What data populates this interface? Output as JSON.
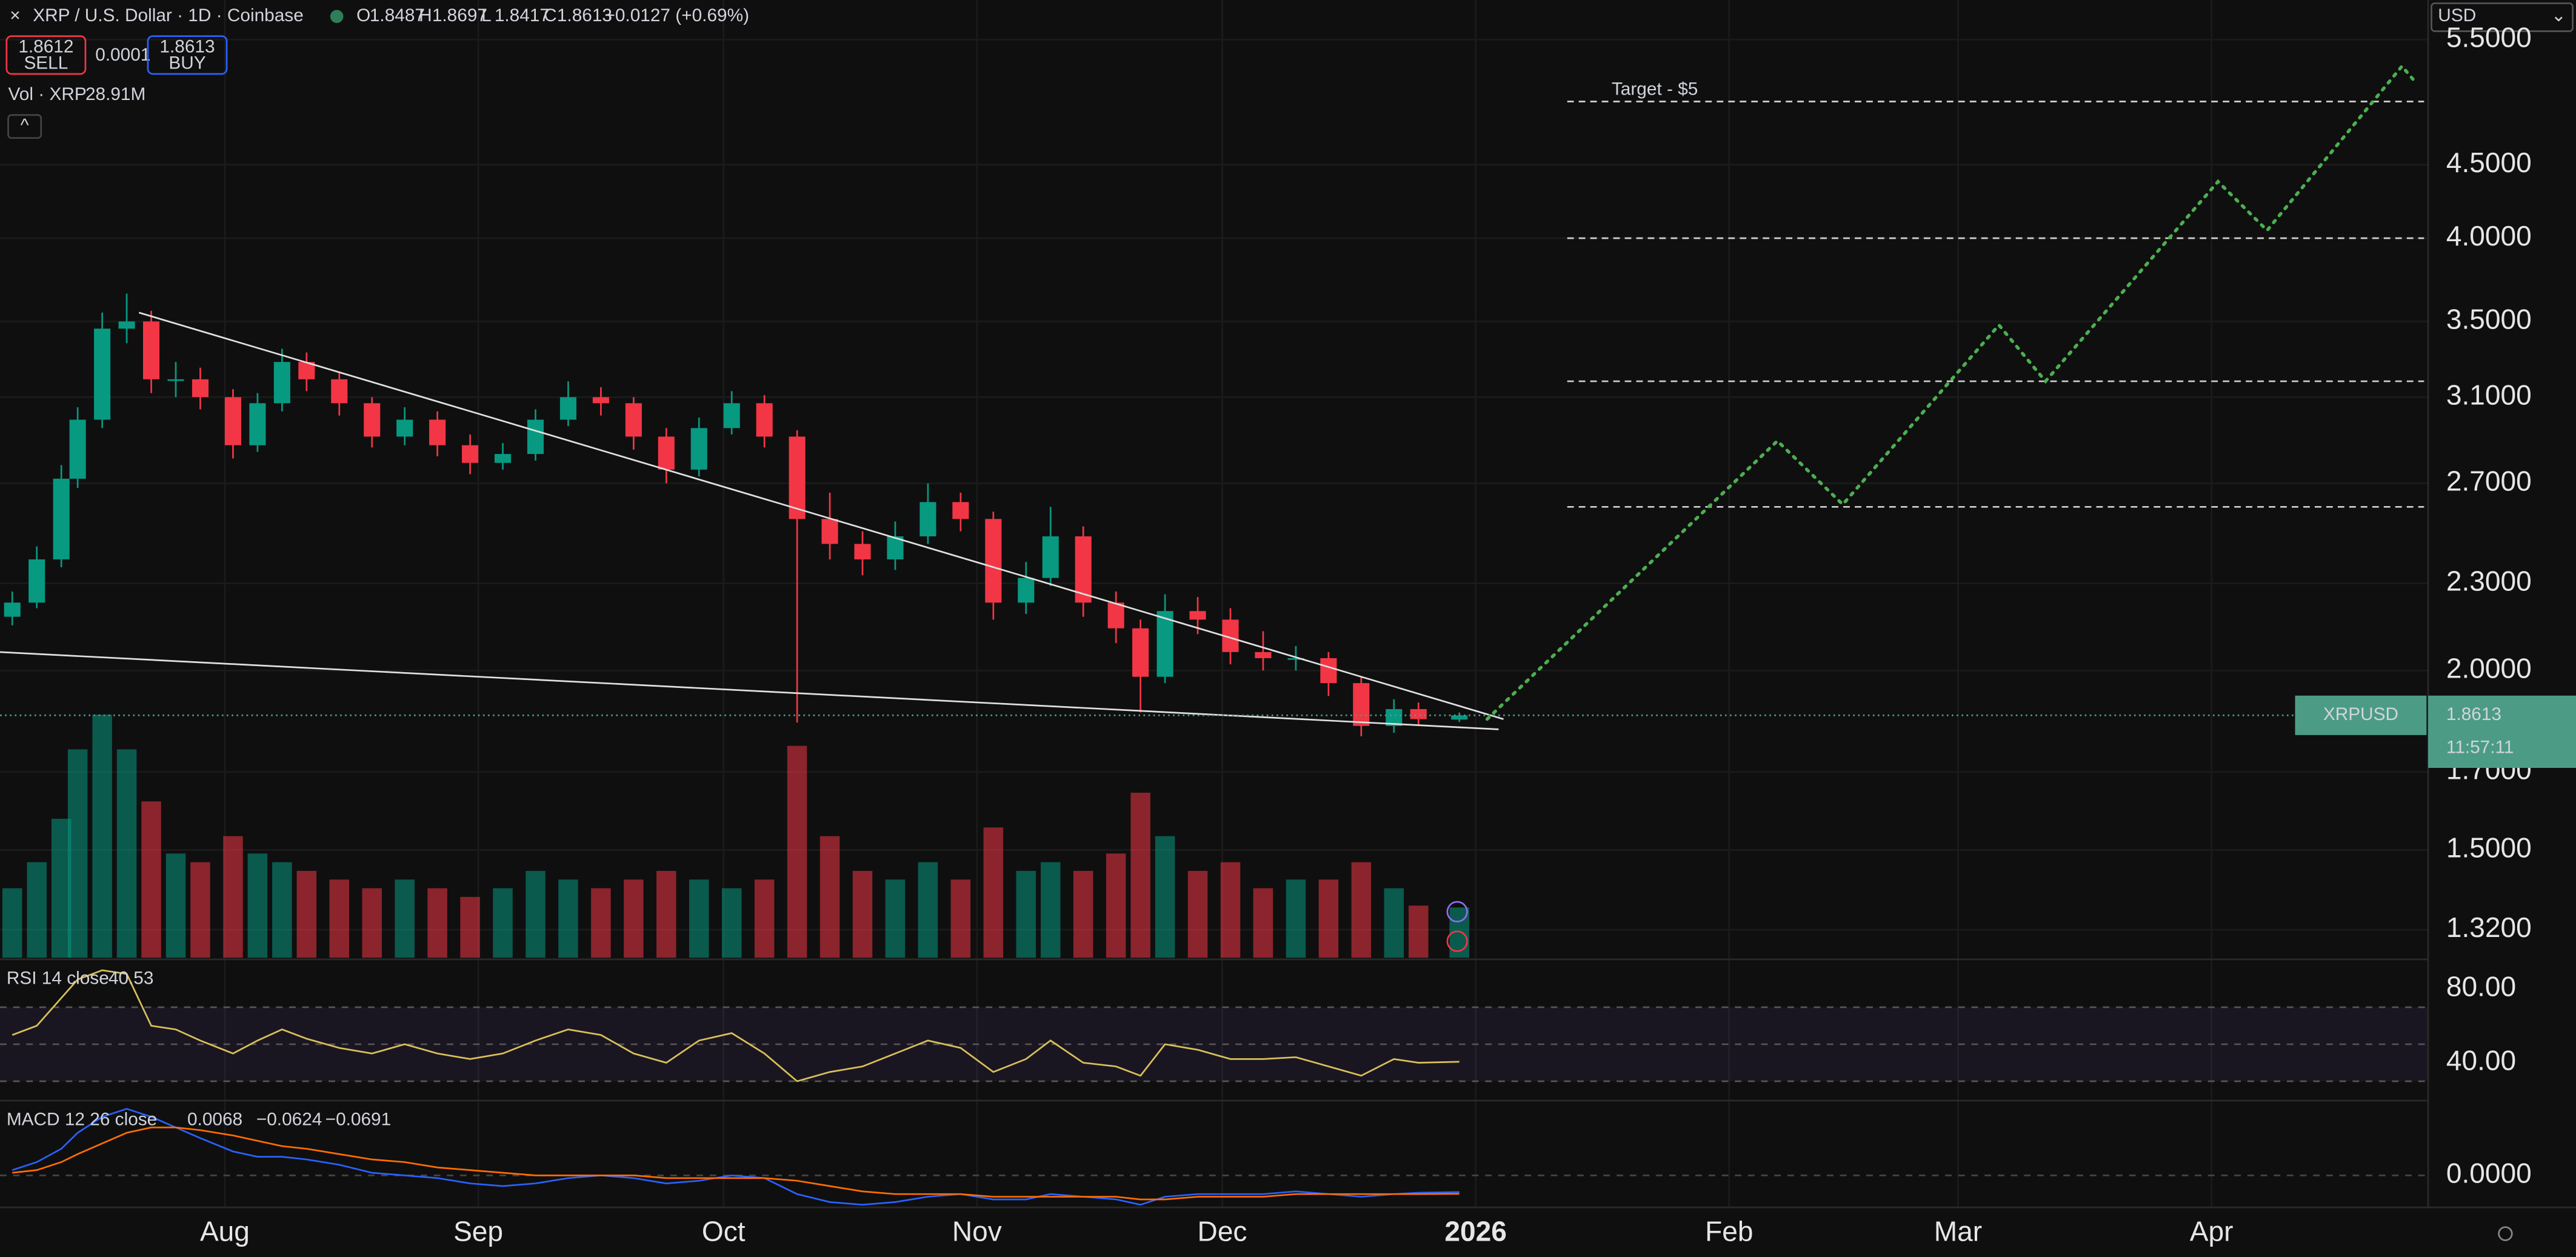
{
  "header": {
    "symbol": "XRP / U.S. Dollar · 1D · Coinbase",
    "ohlc_keys": [
      "O",
      "H",
      "L",
      "C"
    ],
    "change": "+0.0127 (+0.69%)",
    "sell": 1.8612,
    "sell_label": "SELL",
    "spread": 0.0001,
    "buy": 1.8613,
    "buy_label": "BUY",
    "currency": "USD"
  },
  "chart_data": {
    "type": "candlestick",
    "x": [
      186,
      189,
      192,
      194,
      197,
      200,
      203,
      206,
      209,
      213,
      216,
      219,
      222,
      226,
      230,
      234,
      238,
      242,
      246,
      250,
      254,
      258,
      262,
      266,
      270,
      274,
      278,
      282,
      286,
      290,
      294,
      298,
      302,
      306,
      310,
      313,
      317,
      321,
      324,
      327,
      331,
      335,
      339,
      343,
      347,
      351,
      355,
      358,
      363
    ],
    "open": [
      2.18,
      2.23,
      2.39,
      2.72,
      2.99,
      3.46,
      3.5,
      3.19,
      3.19,
      3.1,
      2.87,
      3.07,
      3.28,
      3.19,
      3.07,
      2.91,
      2.99,
      2.87,
      2.79,
      2.83,
      2.99,
      3.1,
      3.07,
      2.91,
      2.76,
      2.95,
      3.07,
      2.91,
      2.55,
      2.45,
      2.39,
      2.48,
      2.62,
      2.55,
      2.23,
      2.32,
      2.48,
      2.23,
      2.14,
      1.98,
      2.2,
      2.17,
      2.06,
      2.04,
      2.04,
      1.96,
      1.83,
      1.88,
      1.8487
    ],
    "high": [
      2.27,
      2.44,
      2.78,
      3.05,
      3.55,
      3.66,
      3.56,
      3.28,
      3.25,
      3.14,
      3.12,
      3.35,
      3.33,
      3.23,
      3.1,
      3.05,
      3.03,
      2.92,
      2.88,
      3.04,
      3.18,
      3.15,
      3.1,
      2.95,
      3.0,
      3.13,
      3.11,
      2.94,
      2.66,
      2.5,
      2.54,
      2.7,
      2.66,
      2.58,
      2.38,
      2.6,
      2.52,
      2.27,
      2.17,
      2.26,
      2.25,
      2.21,
      2.13,
      2.08,
      2.06,
      1.98,
      1.91,
      1.9,
      1.8697
    ],
    "low": [
      2.15,
      2.21,
      2.36,
      2.68,
      2.95,
      3.38,
      3.12,
      3.1,
      3.04,
      2.81,
      2.84,
      3.03,
      3.13,
      3.01,
      2.86,
      2.87,
      2.82,
      2.74,
      2.76,
      2.8,
      2.96,
      3.01,
      2.85,
      2.7,
      2.73,
      2.92,
      2.86,
      1.84,
      2.39,
      2.33,
      2.35,
      2.45,
      2.5,
      2.17,
      2.19,
      2.29,
      2.18,
      2.09,
      1.87,
      1.96,
      2.12,
      2.02,
      2.0,
      2.0,
      1.92,
      1.8,
      1.81,
      1.83,
      1.8417
    ],
    "close": [
      2.23,
      2.39,
      2.72,
      2.99,
      3.46,
      3.5,
      3.19,
      3.19,
      3.1,
      2.87,
      3.07,
      3.28,
      3.19,
      3.07,
      2.91,
      2.99,
      2.87,
      2.79,
      2.83,
      2.99,
      3.1,
      3.07,
      2.91,
      2.76,
      2.95,
      3.07,
      2.91,
      2.55,
      2.45,
      2.39,
      2.48,
      2.62,
      2.55,
      2.23,
      2.32,
      2.48,
      2.23,
      2.14,
      1.98,
      2.2,
      2.17,
      2.06,
      2.04,
      2.04,
      1.96,
      1.83,
      1.88,
      1.85,
      1.8613
    ],
    "up_color": "#089981",
    "down_color": "#f23645",
    "xlim": [
      184.5,
      481.5
    ],
    "xticks": [
      {
        "value": 212,
        "label": "Aug"
      },
      {
        "value": 243,
        "label": "Sep"
      },
      {
        "value": 273,
        "label": "Oct"
      },
      {
        "value": 304,
        "label": "Nov"
      },
      {
        "value": 334,
        "label": "Dec"
      },
      {
        "value": 365,
        "label": "2026"
      },
      {
        "value": 396,
        "label": "Feb"
      },
      {
        "value": 424,
        "label": "Mar"
      },
      {
        "value": 455,
        "label": "Apr"
      }
    ],
    "ylim": [
      1.262,
      5.86
    ],
    "log_scale": true,
    "grid": true,
    "yticks": [
      {
        "value": 5.5,
        "label": "5.5000"
      },
      {
        "value": 4.5,
        "label": "4.5000"
      },
      {
        "value": 4,
        "label": "4.0000"
      },
      {
        "value": 3.5,
        "label": "3.5000"
      },
      {
        "value": 3.1,
        "label": "3.1000"
      },
      {
        "value": 2.7,
        "label": "2.7000"
      },
      {
        "value": 2.3,
        "label": "2.3000"
      },
      {
        "value": 2,
        "label": "2.0000"
      },
      {
        "value": 1.7,
        "label": "1.7000"
      },
      {
        "value": 1.5,
        "label": "1.5000"
      },
      {
        "value": 1.32,
        "label": "1.3200"
      }
    ],
    "price_tag": {
      "symbol": "XRPUSD",
      "countdown": "11:57:11",
      "color": "#4c9c85"
    },
    "trendlines": [
      {
        "x": [
          201.5,
          368.4
        ],
        "y": [
          3.55,
          1.85
        ],
        "color": "#e0e0e0"
      },
      {
        "x": [
          184.5,
          367.8
        ],
        "y": [
          2.06,
          1.82
        ],
        "color": "#e0e0e0"
      }
    ],
    "projection": {
      "x": [
        366.4,
        401.9,
        409.9,
        429.0,
        434.7,
        455.8,
        461.8,
        478.3,
        479.9
      ],
      "y": [
        1.85,
        2.89,
        2.61,
        3.48,
        3.18,
        4.38,
        4.05,
        5.27,
        5.14
      ],
      "color": "#4caf50"
    },
    "levels": {
      "values": [
        4.98,
        4.0,
        3.18,
        2.6
      ],
      "xrange": [
        376.2,
        481.0
      ],
      "color": "#d0d0d0",
      "target_label": "Target - $5"
    },
    "volume": {
      "name": "Vol · XRP",
      "legend_value": "28.91M",
      "values": [
        40,
        55,
        80,
        120,
        140,
        120,
        90,
        60,
        55,
        70,
        60,
        55,
        50,
        45,
        40,
        45,
        40,
        35,
        40,
        50,
        45,
        40,
        45,
        50,
        45,
        40,
        45,
        122,
        70,
        50,
        45,
        55,
        45,
        75,
        50,
        55,
        50,
        60,
        95,
        70,
        50,
        55,
        40,
        45,
        45,
        55,
        40,
        30,
        28.91
      ]
    },
    "rsi": {
      "label": "RSI 14 close",
      "color": "#d9c15a",
      "values": [
        55,
        60,
        75,
        85,
        90,
        88,
        60,
        58,
        52,
        45,
        52,
        58,
        53,
        48,
        45,
        50,
        45,
        42,
        45,
        52,
        58,
        55,
        45,
        40,
        52,
        56,
        45,
        30,
        35,
        38,
        45,
        52,
        48,
        35,
        42,
        52,
        40,
        38,
        33,
        50,
        47,
        42,
        42,
        43,
        38,
        33,
        42,
        40,
        40.53
      ],
      "ylim": [
        21.3,
        95
      ],
      "yticks": [
        {
          "value": 80,
          "label": "80.00"
        },
        {
          "value": 40,
          "label": "40.00"
        }
      ],
      "bands": [
        30,
        50,
        70
      ]
    },
    "macd": {
      "label": "MACD 12 26 close",
      "legend_values": [
        "0.0068",
        "−0.0624",
        "−0.0691"
      ],
      "macd": [
        0.02,
        0.05,
        0.1,
        0.16,
        0.22,
        0.25,
        0.22,
        0.18,
        0.14,
        0.09,
        0.07,
        0.07,
        0.06,
        0.04,
        0.01,
        0,
        -0.01,
        -0.03,
        -0.04,
        -0.03,
        -0.01,
        0,
        -0.01,
        -0.03,
        -0.02,
        0,
        -0.01,
        -0.07,
        -0.1,
        -0.11,
        -0.1,
        -0.08,
        -0.07,
        -0.09,
        -0.09,
        -0.07,
        -0.08,
        -0.09,
        -0.11,
        -0.08,
        -0.07,
        -0.07,
        -0.07,
        -0.06,
        -0.07,
        -0.08,
        -0.07,
        -0.065,
        -0.0624
      ],
      "signal": [
        0.01,
        0.02,
        0.05,
        0.08,
        0.12,
        0.16,
        0.18,
        0.18,
        0.17,
        0.15,
        0.13,
        0.11,
        0.1,
        0.08,
        0.06,
        0.05,
        0.03,
        0.02,
        0.01,
        0,
        0,
        0,
        0,
        -0.01,
        -0.01,
        -0.01,
        -0.01,
        -0.02,
        -0.04,
        -0.06,
        -0.07,
        -0.07,
        -0.07,
        -0.08,
        -0.08,
        -0.08,
        -0.08,
        -0.08,
        -0.09,
        -0.09,
        -0.08,
        -0.08,
        -0.08,
        -0.07,
        -0.07,
        -0.07,
        -0.07,
        -0.07,
        -0.0691
      ],
      "macd_color": "#2962ff",
      "signal_color": "#ff6d00",
      "ylim": [
        -0.12,
        0.25
      ],
      "yticks": [
        {
          "value": 0,
          "label": "0.0000"
        }
      ]
    }
  }
}
